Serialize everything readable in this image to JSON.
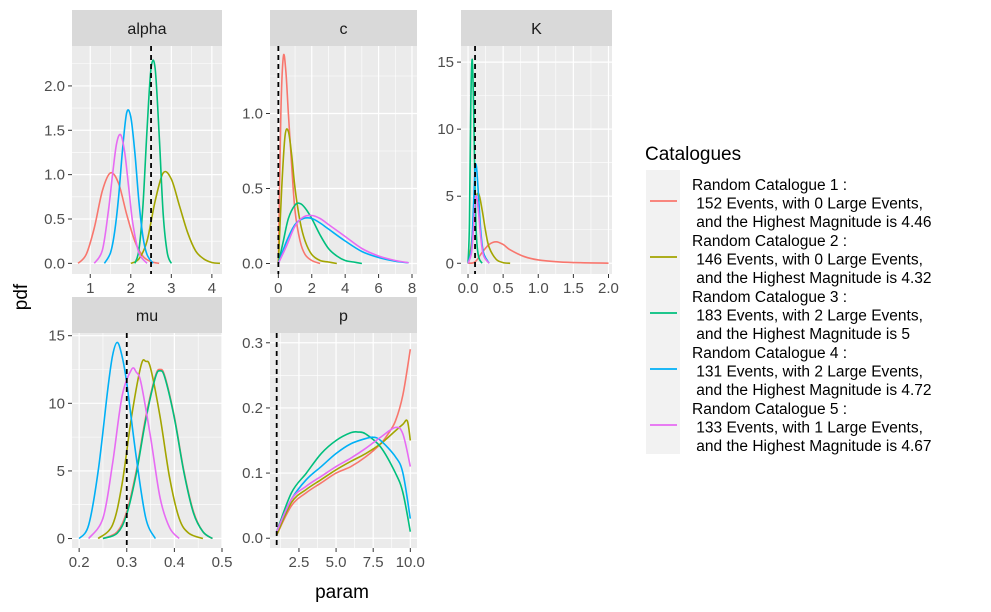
{
  "figure": {
    "ylabel": "pdf",
    "xlabel": "param"
  },
  "legend": {
    "title": "Catalogues",
    "items": [
      {
        "line1": "Random Catalogue 1 :",
        "line2": " 152 Events, with 0 Large Events,",
        "line3": " and the Highest Magnitude is 4.46",
        "color": "#F8766D"
      },
      {
        "line1": "Random Catalogue 2 :",
        "line2": " 146 Events, with 0 Large Events,",
        "line3": " and the Highest Magnitude is 4.32",
        "color": "#A3A500"
      },
      {
        "line1": "Random Catalogue 3 :",
        "line2": " 183 Events, with 2 Large Events,",
        "line3": " and the Highest Magnitude is 5",
        "color": "#00BF7D"
      },
      {
        "line1": "Random Catalogue 4 :",
        "line2": " 131 Events, with 2 Large Events,",
        "line3": " and the Highest Magnitude is 4.72",
        "color": "#00B0F6"
      },
      {
        "line1": "Random Catalogue 5 :",
        "line2": " 133 Events, with 1 Large Events,",
        "line3": " and the Highest Magnitude is 4.67",
        "color": "#E76BF3"
      }
    ]
  },
  "chart_data": [
    {
      "type": "line",
      "title": "alpha",
      "xlim": [
        0.55,
        4.25
      ],
      "ylim": [
        -0.12,
        2.45
      ],
      "xticks": [
        1,
        2,
        3,
        4
      ],
      "xtick_labels": [
        "1",
        "2",
        "3",
        "4"
      ],
      "yticks": [
        0,
        0.5,
        1,
        1.5,
        2
      ],
      "ytick_labels": [
        "0.0",
        "0.5",
        "1.0",
        "1.5",
        "2.0"
      ],
      "vline": 2.5,
      "series": [
        {
          "name": "Random Catalogue 1",
          "x": [
            0.7,
            0.9,
            1.1,
            1.3,
            1.5,
            1.7,
            1.9,
            2.1,
            2.3,
            2.5,
            2.7
          ],
          "y": [
            0.0,
            0.1,
            0.4,
            0.82,
            1.02,
            0.9,
            0.55,
            0.25,
            0.08,
            0.02,
            0.0
          ]
        },
        {
          "name": "Random Catalogue 2",
          "x": [
            2.0,
            2.2,
            2.4,
            2.6,
            2.8,
            3.0,
            3.2,
            3.4,
            3.6,
            3.8,
            4.0,
            4.2
          ],
          "y": [
            0.0,
            0.05,
            0.25,
            0.7,
            1.02,
            0.95,
            0.65,
            0.35,
            0.14,
            0.05,
            0.01,
            0.0
          ]
        },
        {
          "name": "Random Catalogue 3",
          "x": [
            2.1,
            2.2,
            2.3,
            2.4,
            2.5,
            2.6,
            2.7,
            2.8,
            2.9,
            3.0
          ],
          "y": [
            0.0,
            0.15,
            0.65,
            1.5,
            2.2,
            2.2,
            1.45,
            0.55,
            0.12,
            0.0
          ]
        },
        {
          "name": "Random Catalogue 4",
          "x": [
            1.35,
            1.5,
            1.6,
            1.7,
            1.8,
            1.9,
            2.0,
            2.1,
            2.2,
            2.3,
            2.4,
            2.55
          ],
          "y": [
            0.0,
            0.12,
            0.35,
            0.75,
            1.3,
            1.7,
            1.65,
            1.25,
            0.7,
            0.3,
            0.1,
            0.0
          ]
        },
        {
          "name": "Random Catalogue 5",
          "x": [
            1.1,
            1.3,
            1.45,
            1.55,
            1.65,
            1.75,
            1.85,
            1.95,
            2.05,
            2.2,
            2.4
          ],
          "y": [
            0.0,
            0.15,
            0.6,
            1.0,
            1.35,
            1.45,
            1.25,
            0.85,
            0.45,
            0.12,
            0.0
          ]
        }
      ]
    },
    {
      "type": "line",
      "title": "c",
      "xlim": [
        -0.5,
        8.3
      ],
      "ylim": [
        -0.07,
        1.45
      ],
      "xticks": [
        0,
        2,
        4,
        6,
        8
      ],
      "xtick_labels": [
        "0",
        "2",
        "4",
        "6",
        "8"
      ],
      "yticks": [
        0,
        0.5,
        1
      ],
      "ytick_labels": [
        "0.0",
        "0.5",
        "1.0"
      ],
      "vline": 0,
      "series": [
        {
          "name": "Random Catalogue 1",
          "x": [
            0.0,
            0.15,
            0.3,
            0.45,
            0.6,
            0.8,
            1.0,
            1.3,
            1.6,
            2.0,
            2.5
          ],
          "y": [
            0.0,
            1.0,
            1.38,
            1.28,
            1.0,
            0.65,
            0.35,
            0.15,
            0.06,
            0.02,
            0.0
          ]
        },
        {
          "name": "Random Catalogue 2",
          "x": [
            0.0,
            0.2,
            0.4,
            0.6,
            0.8,
            1.0,
            1.3,
            1.6,
            2.0,
            2.5,
            3.0,
            3.5
          ],
          "y": [
            0.0,
            0.5,
            0.85,
            0.88,
            0.72,
            0.5,
            0.28,
            0.15,
            0.06,
            0.02,
            0.01,
            0.0
          ]
        },
        {
          "name": "Random Catalogue 3",
          "x": [
            0.0,
            0.3,
            0.6,
            1.0,
            1.3,
            1.6,
            2.0,
            2.5,
            3.0,
            3.5,
            4.0,
            4.5,
            5.0
          ],
          "y": [
            0.0,
            0.15,
            0.3,
            0.39,
            0.4,
            0.37,
            0.3,
            0.19,
            0.1,
            0.05,
            0.02,
            0.01,
            0.0
          ]
        },
        {
          "name": "Random Catalogue 4",
          "x": [
            0.0,
            0.5,
            1.0,
            1.5,
            2.0,
            2.5,
            3.0,
            4.0,
            5.0,
            6.0,
            7.0,
            7.8
          ],
          "y": [
            0.0,
            0.15,
            0.26,
            0.3,
            0.3,
            0.27,
            0.23,
            0.15,
            0.08,
            0.04,
            0.015,
            0.005
          ]
        },
        {
          "name": "Random Catalogue 5",
          "x": [
            0.0,
            0.5,
            1.0,
            1.5,
            2.0,
            2.5,
            3.0,
            4.0,
            5.0,
            6.0,
            7.0,
            7.8
          ],
          "y": [
            0.0,
            0.12,
            0.25,
            0.31,
            0.32,
            0.3,
            0.26,
            0.18,
            0.1,
            0.05,
            0.02,
            0.005
          ]
        }
      ]
    },
    {
      "type": "line",
      "title": "K",
      "xlim": [
        -0.1,
        2.05
      ],
      "ylim": [
        -0.8,
        16.2
      ],
      "xticks": [
        0,
        0.5,
        1,
        1.5,
        2
      ],
      "xtick_labels": [
        "0.0",
        "0.5",
        "1.0",
        "1.5",
        "2.0"
      ],
      "yticks": [
        0,
        5,
        10,
        15
      ],
      "ytick_labels": [
        "0",
        "5",
        "10",
        "15"
      ],
      "vline": 0.1,
      "series": [
        {
          "name": "Random Catalogue 1",
          "x": [
            0.0,
            0.1,
            0.2,
            0.3,
            0.4,
            0.5,
            0.6,
            0.8,
            1.0,
            1.3,
            1.6,
            2.0
          ],
          "y": [
            0.0,
            0.1,
            0.8,
            1.4,
            1.6,
            1.4,
            1.0,
            0.5,
            0.25,
            0.1,
            0.04,
            0.01
          ]
        },
        {
          "name": "Random Catalogue 2",
          "x": [
            0.0,
            0.05,
            0.1,
            0.15,
            0.2,
            0.25,
            0.3,
            0.4,
            0.5,
            0.6
          ],
          "y": [
            0.0,
            1.5,
            4.5,
            5.2,
            4.0,
            2.4,
            1.2,
            0.3,
            0.05,
            0.0
          ]
        },
        {
          "name": "Random Catalogue 3",
          "x": [
            0.0,
            0.02,
            0.04,
            0.06,
            0.08,
            0.1,
            0.12,
            0.15,
            0.2
          ],
          "y": [
            0.0,
            3.0,
            12.0,
            15.2,
            11.5,
            5.5,
            2.0,
            0.5,
            0.0
          ]
        },
        {
          "name": "Random Catalogue 4",
          "x": [
            0.0,
            0.05,
            0.08,
            0.1,
            0.12,
            0.15,
            0.18,
            0.22,
            0.3
          ],
          "y": [
            0.0,
            1.2,
            4.5,
            7.0,
            7.2,
            5.0,
            2.5,
            0.8,
            0.0
          ]
        },
        {
          "name": "Random Catalogue 5",
          "x": [
            0.0,
            0.05,
            0.08,
            0.1,
            0.12,
            0.15,
            0.18,
            0.22,
            0.3
          ],
          "y": [
            0.0,
            0.8,
            2.8,
            4.6,
            5.0,
            3.8,
            2.0,
            0.6,
            0.0
          ]
        }
      ]
    },
    {
      "type": "line",
      "title": "mu",
      "xlim": [
        0.185,
        0.5
      ],
      "ylim": [
        -0.7,
        15.2
      ],
      "xticks": [
        0.2,
        0.3,
        0.4,
        0.5
      ],
      "xtick_labels": [
        "0.2",
        "0.3",
        "0.4",
        "0.5"
      ],
      "yticks": [
        0,
        5,
        10,
        15
      ],
      "ytick_labels": [
        "0",
        "5",
        "10",
        "15"
      ],
      "vline": 0.3,
      "series": [
        {
          "name": "Random Catalogue 1",
          "x": [
            0.25,
            0.28,
            0.3,
            0.32,
            0.34,
            0.36,
            0.37,
            0.38,
            0.4,
            0.42,
            0.44,
            0.46,
            0.48
          ],
          "y": [
            0.0,
            0.5,
            2.0,
            5.0,
            9.0,
            12.0,
            12.5,
            12.0,
            9.0,
            5.0,
            2.0,
            0.5,
            0.0
          ]
        },
        {
          "name": "Random Catalogue 2",
          "x": [
            0.24,
            0.27,
            0.29,
            0.31,
            0.33,
            0.34,
            0.35,
            0.37,
            0.39,
            0.41,
            0.43,
            0.46
          ],
          "y": [
            0.0,
            1.0,
            4.0,
            9.0,
            12.8,
            13.1,
            12.6,
            9.0,
            4.5,
            1.5,
            0.4,
            0.0
          ]
        },
        {
          "name": "Random Catalogue 3",
          "x": [
            0.25,
            0.28,
            0.3,
            0.32,
            0.34,
            0.36,
            0.37,
            0.38,
            0.4,
            0.42,
            0.44,
            0.46,
            0.48
          ],
          "y": [
            0.0,
            0.4,
            1.8,
            4.8,
            8.8,
            11.9,
            12.4,
            11.9,
            8.9,
            4.9,
            1.9,
            0.5,
            0.0
          ]
        },
        {
          "name": "Random Catalogue 4",
          "x": [
            0.2,
            0.22,
            0.24,
            0.26,
            0.27,
            0.28,
            0.29,
            0.3,
            0.32,
            0.34,
            0.36
          ],
          "y": [
            0.0,
            1.0,
            5.0,
            11.0,
            13.5,
            14.5,
            13.5,
            11.5,
            6.0,
            1.5,
            0.0
          ]
        },
        {
          "name": "Random Catalogue 5",
          "x": [
            0.22,
            0.25,
            0.27,
            0.29,
            0.31,
            0.32,
            0.33,
            0.35,
            0.37,
            0.39,
            0.41
          ],
          "y": [
            0.0,
            1.5,
            5.5,
            10.5,
            12.5,
            12.3,
            11.5,
            7.5,
            3.0,
            0.8,
            0.0
          ]
        }
      ]
    },
    {
      "type": "line",
      "title": "p",
      "xlim": [
        0.55,
        10.45
      ],
      "ylim": [
        -0.015,
        0.315
      ],
      "xticks": [
        2.5,
        5,
        7.5,
        10
      ],
      "xtick_labels": [
        "2.5",
        "5.0",
        "7.5",
        "10.0"
      ],
      "yticks": [
        0,
        0.1,
        0.2,
        0.3
      ],
      "ytick_labels": [
        "0.0",
        "0.1",
        "0.2",
        "0.3"
      ],
      "vline": 1,
      "series": [
        {
          "name": "Random Catalogue 1",
          "x": [
            1,
            2,
            3,
            4,
            5,
            6,
            7,
            8,
            8.5,
            9,
            9.5,
            10
          ],
          "y": [
            0.005,
            0.05,
            0.07,
            0.085,
            0.1,
            0.11,
            0.125,
            0.145,
            0.16,
            0.18,
            0.22,
            0.29
          ]
        },
        {
          "name": "Random Catalogue 2",
          "x": [
            1,
            2,
            3,
            4,
            5,
            6,
            7,
            8,
            9,
            9.5,
            9.8,
            10
          ],
          "y": [
            0.005,
            0.055,
            0.075,
            0.09,
            0.105,
            0.118,
            0.13,
            0.145,
            0.165,
            0.175,
            0.18,
            0.15
          ]
        },
        {
          "name": "Random Catalogue 3",
          "x": [
            1,
            2,
            3,
            4,
            5,
            6,
            6.5,
            7,
            8,
            9,
            9.5,
            10
          ],
          "y": [
            0.01,
            0.07,
            0.1,
            0.13,
            0.15,
            0.162,
            0.163,
            0.16,
            0.14,
            0.1,
            0.07,
            0.01
          ]
        },
        {
          "name": "Random Catalogue 4",
          "x": [
            1,
            2,
            3,
            4,
            5,
            6,
            7,
            7.5,
            8,
            9,
            9.5,
            10
          ],
          "y": [
            0.01,
            0.06,
            0.09,
            0.11,
            0.13,
            0.145,
            0.153,
            0.155,
            0.15,
            0.125,
            0.1,
            0.03
          ]
        },
        {
          "name": "Random Catalogue 5",
          "x": [
            1,
            2,
            3,
            4,
            5,
            6,
            7,
            8,
            9,
            9.5,
            10
          ],
          "y": [
            0.01,
            0.06,
            0.08,
            0.095,
            0.11,
            0.123,
            0.138,
            0.155,
            0.17,
            0.16,
            0.11
          ]
        }
      ]
    }
  ]
}
